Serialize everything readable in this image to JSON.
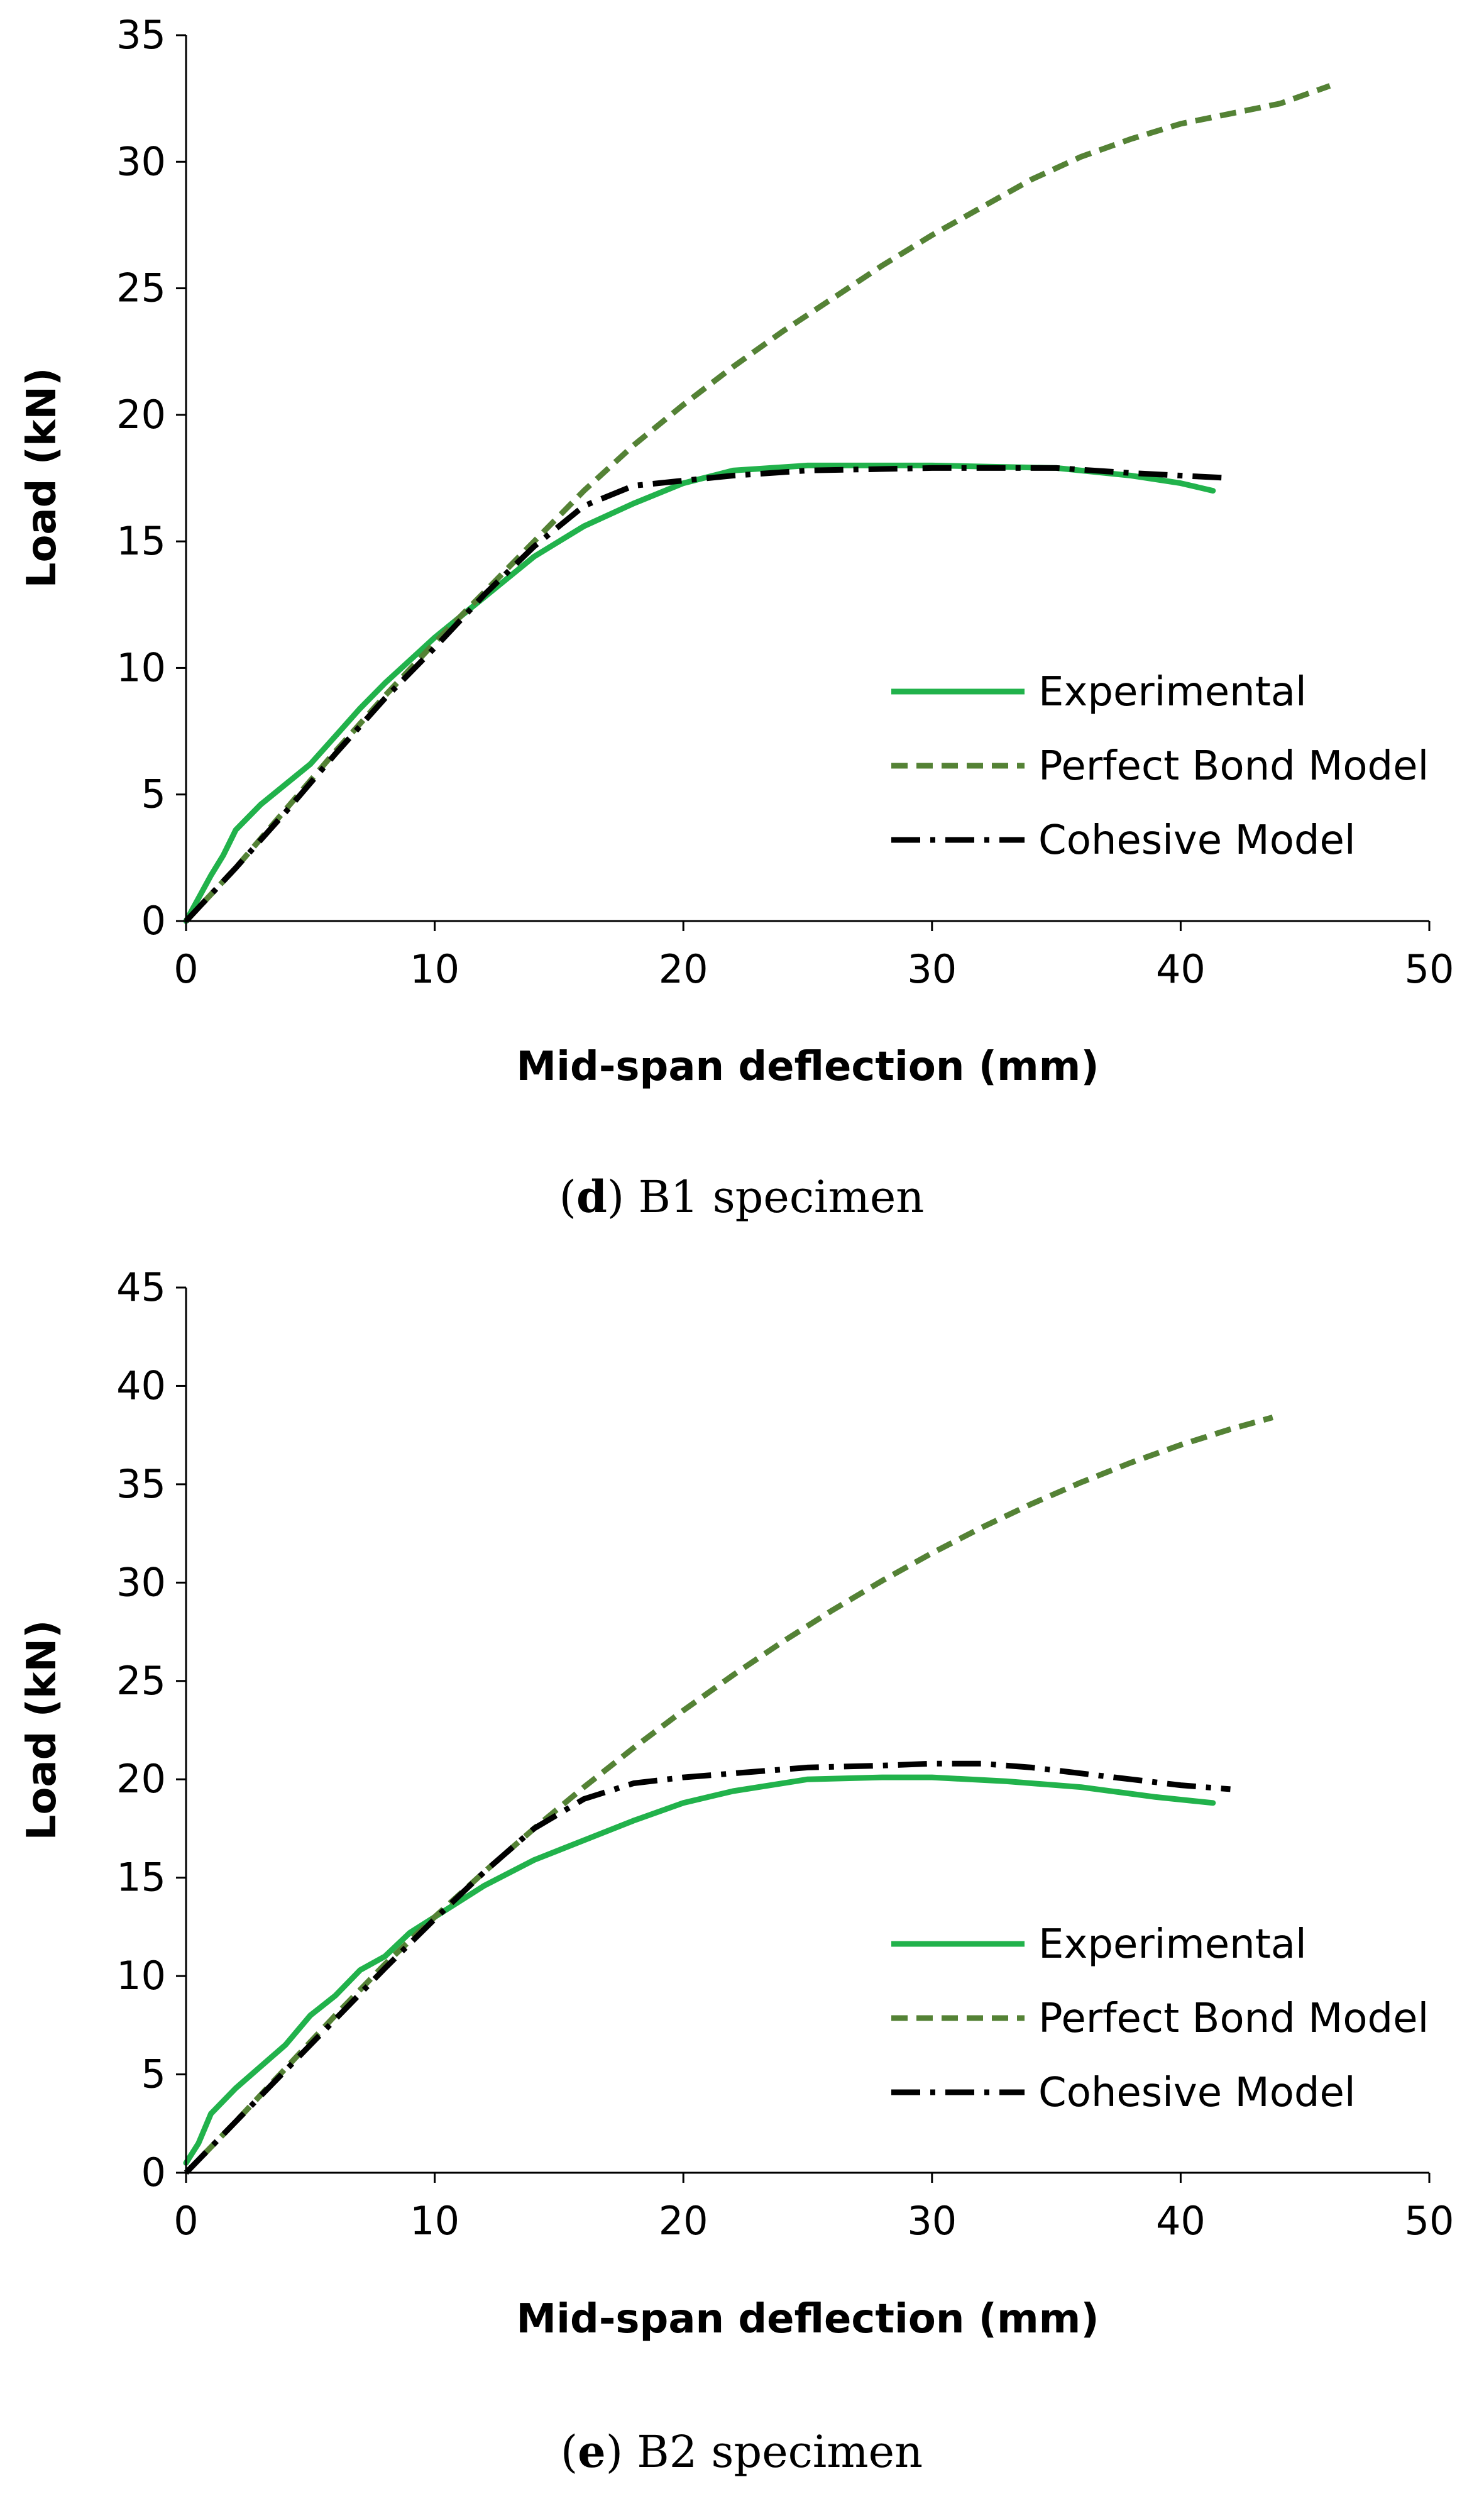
{
  "chart_data": [
    {
      "type": "line",
      "panel_letter": "d",
      "caption": "B1 specimen",
      "xlabel": "Mid-span deflection (mm)",
      "ylabel": "Load (kN)",
      "xlim": [
        0,
        50
      ],
      "ylim": [
        0,
        35
      ],
      "xticks": [
        0,
        10,
        20,
        30,
        40,
        50
      ],
      "yticks": [
        0,
        5,
        10,
        15,
        20,
        25,
        30,
        35
      ],
      "grid": false,
      "legend_position": "right-middle",
      "series": [
        {
          "name": "Experimental",
          "color": "#21b24b",
          "style": "solid",
          "points": [
            [
              0,
              0
            ],
            [
              1,
              1.8
            ],
            [
              1.5,
              2.6
            ],
            [
              2,
              3.6
            ],
            [
              3,
              4.6
            ],
            [
              4,
              5.4
            ],
            [
              5,
              6.2
            ],
            [
              6,
              7.3
            ],
            [
              7,
              8.4
            ],
            [
              8,
              9.4
            ],
            [
              9,
              10.3
            ],
            [
              10,
              11.2
            ],
            [
              12,
              12.8
            ],
            [
              14,
              14.4
            ],
            [
              16,
              15.6
            ],
            [
              18,
              16.5
            ],
            [
              20,
              17.3
            ],
            [
              22,
              17.8
            ],
            [
              25,
              18.0
            ],
            [
              30,
              18.0
            ],
            [
              35,
              17.9
            ],
            [
              38,
              17.6
            ],
            [
              40,
              17.3
            ],
            [
              41.3,
              17.0
            ]
          ]
        },
        {
          "name": "Perfect Bond Model",
          "color": "#548235",
          "style": "dashed",
          "points": [
            [
              0,
              0
            ],
            [
              2,
              2.1
            ],
            [
              4,
              4.4
            ],
            [
              6,
              6.7
            ],
            [
              8,
              8.9
            ],
            [
              10,
              11.0
            ],
            [
              12,
              13.0
            ],
            [
              14,
              15.0
            ],
            [
              16,
              17.0
            ],
            [
              18,
              18.8
            ],
            [
              20,
              20.4
            ],
            [
              22,
              21.9
            ],
            [
              24,
              23.3
            ],
            [
              26,
              24.6
            ],
            [
              28,
              25.9
            ],
            [
              30,
              27.1
            ],
            [
              32,
              28.2
            ],
            [
              34,
              29.3
            ],
            [
              36,
              30.2
            ],
            [
              38,
              30.9
            ],
            [
              40,
              31.5
            ],
            [
              42,
              31.9
            ],
            [
              44,
              32.3
            ],
            [
              46,
              33.0
            ]
          ]
        },
        {
          "name": "Cohesive Model",
          "color": "#000000",
          "style": "dashdot",
          "points": [
            [
              0,
              0
            ],
            [
              2,
              2.1
            ],
            [
              4,
              4.3
            ],
            [
              6,
              6.6
            ],
            [
              8,
              8.8
            ],
            [
              10,
              10.8
            ],
            [
              12,
              12.9
            ],
            [
              14,
              14.8
            ],
            [
              16,
              16.4
            ],
            [
              18,
              17.2
            ],
            [
              20,
              17.4
            ],
            [
              22,
              17.6
            ],
            [
              25,
              17.8
            ],
            [
              30,
              17.9
            ],
            [
              35,
              17.9
            ],
            [
              38,
              17.7
            ],
            [
              40,
              17.6
            ],
            [
              42,
              17.5
            ]
          ]
        }
      ]
    },
    {
      "type": "line",
      "panel_letter": "e",
      "caption": "B2 specimen",
      "xlabel": "Mid-span deflection (mm)",
      "ylabel": "Load (kN)",
      "xlim": [
        0,
        50
      ],
      "ylim": [
        0,
        45
      ],
      "xticks": [
        0,
        10,
        20,
        30,
        40,
        50
      ],
      "yticks": [
        0,
        5,
        10,
        15,
        20,
        25,
        30,
        35,
        40,
        45
      ],
      "grid": false,
      "legend_position": "right-middle",
      "series": [
        {
          "name": "Experimental",
          "color": "#21b24b",
          "style": "solid",
          "points": [
            [
              0,
              0.5
            ],
            [
              0.5,
              1.5
            ],
            [
              1,
              3.0
            ],
            [
              2,
              4.3
            ],
            [
              3,
              5.4
            ],
            [
              4,
              6.5
            ],
            [
              5,
              8.0
            ],
            [
              6,
              9.0
            ],
            [
              7,
              10.3
            ],
            [
              8,
              11.0
            ],
            [
              9,
              12.2
            ],
            [
              10,
              13.0
            ],
            [
              11,
              13.8
            ],
            [
              12,
              14.6
            ],
            [
              14,
              15.9
            ],
            [
              16,
              16.9
            ],
            [
              18,
              17.9
            ],
            [
              20,
              18.8
            ],
            [
              22,
              19.4
            ],
            [
              25,
              20.0
            ],
            [
              28,
              20.1
            ],
            [
              30,
              20.1
            ],
            [
              33,
              19.9
            ],
            [
              36,
              19.6
            ],
            [
              39,
              19.1
            ],
            [
              41.3,
              18.8
            ]
          ]
        },
        {
          "name": "Perfect Bond Model",
          "color": "#548235",
          "style": "dashed",
          "points": [
            [
              0,
              0
            ],
            [
              2,
              2.6
            ],
            [
              4,
              5.3
            ],
            [
              6,
              8.0
            ],
            [
              8,
              10.6
            ],
            [
              10,
              13.0
            ],
            [
              12,
              15.3
            ],
            [
              14,
              17.5
            ],
            [
              16,
              19.6
            ],
            [
              18,
              21.6
            ],
            [
              20,
              23.5
            ],
            [
              22,
              25.3
            ],
            [
              24,
              27.0
            ],
            [
              26,
              28.6
            ],
            [
              28,
              30.1
            ],
            [
              30,
              31.5
            ],
            [
              32,
              32.8
            ],
            [
              34,
              34.0
            ],
            [
              36,
              35.1
            ],
            [
              38,
              36.1
            ],
            [
              40,
              37.0
            ],
            [
              42,
              37.8
            ],
            [
              43.7,
              38.4
            ]
          ]
        },
        {
          "name": "Cohesive Model",
          "color": "#000000",
          "style": "dashdot",
          "points": [
            [
              0,
              0
            ],
            [
              2,
              2.6
            ],
            [
              4,
              5.2
            ],
            [
              6,
              7.8
            ],
            [
              8,
              10.4
            ],
            [
              10,
              12.9
            ],
            [
              12,
              15.3
            ],
            [
              14,
              17.5
            ],
            [
              16,
              19.0
            ],
            [
              18,
              19.8
            ],
            [
              20,
              20.1
            ],
            [
              22,
              20.3
            ],
            [
              25,
              20.6
            ],
            [
              28,
              20.7
            ],
            [
              30,
              20.8
            ],
            [
              32,
              20.8
            ],
            [
              34,
              20.6
            ],
            [
              36,
              20.3
            ],
            [
              38,
              20.0
            ],
            [
              40,
              19.7
            ],
            [
              42,
              19.5
            ]
          ]
        }
      ]
    }
  ]
}
